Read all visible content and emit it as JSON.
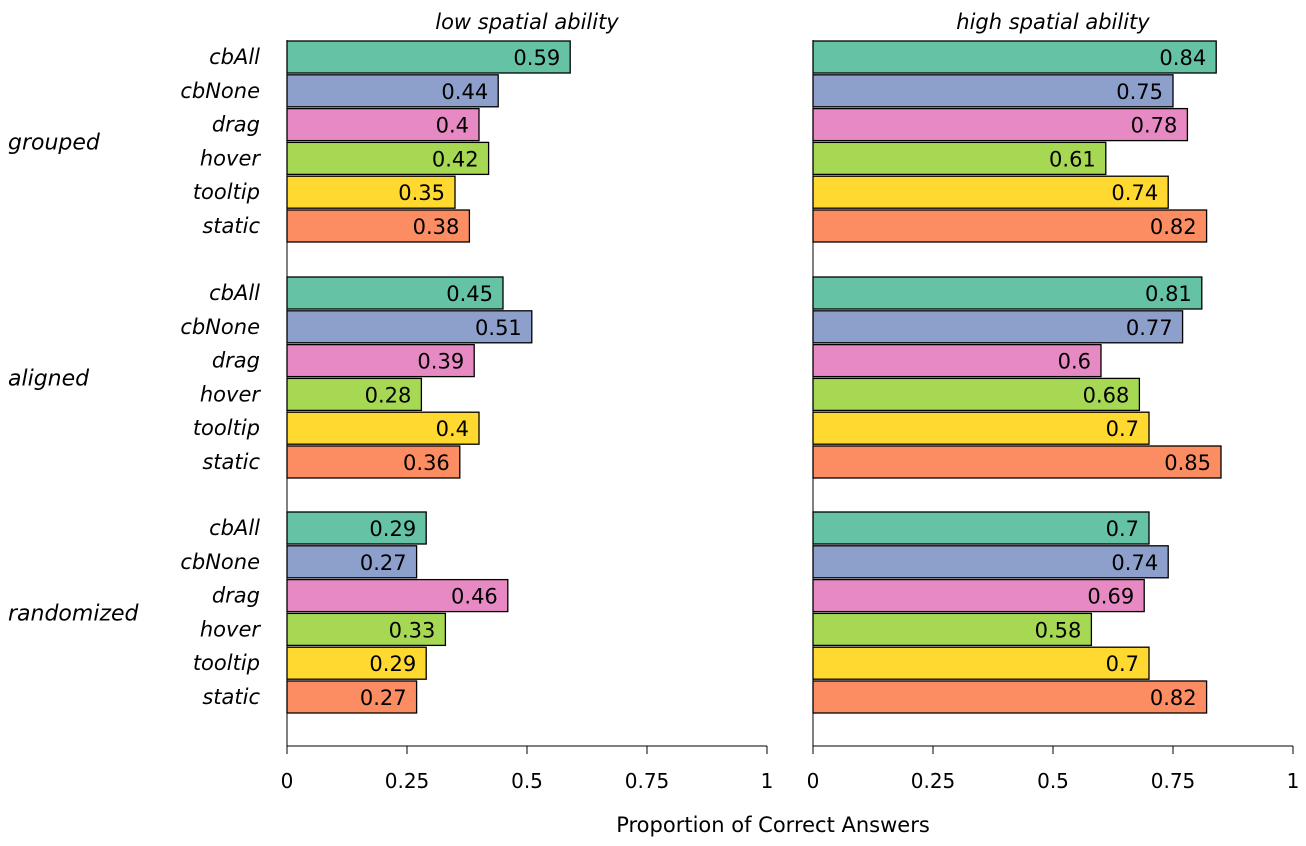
{
  "chart_data": {
    "type": "bar",
    "orientation": "horizontal",
    "xlabel": "Proportion of Correct Answers",
    "xlim": [
      0,
      1
    ],
    "xticks": [
      "0",
      "0.25",
      "0.5",
      "0.75",
      "1"
    ],
    "conditions": [
      "cbAll",
      "cbNone",
      "drag",
      "hover",
      "tooltip",
      "static"
    ],
    "colors": {
      "cbAll": "#66c2a5",
      "cbNone": "#8da0cb",
      "drag": "#e78ac3",
      "hover": "#a6d854",
      "tooltip": "#ffd92f",
      "static": "#fc8d62"
    },
    "groups": [
      "grouped",
      "aligned",
      "randomized"
    ],
    "panels": [
      {
        "title": "low spatial ability",
        "values": {
          "grouped": [
            0.59,
            0.44,
            0.4,
            0.42,
            0.35,
            0.38
          ],
          "aligned": [
            0.45,
            0.51,
            0.39,
            0.28,
            0.4,
            0.36
          ],
          "randomized": [
            0.29,
            0.27,
            0.46,
            0.33,
            0.29,
            0.27
          ]
        }
      },
      {
        "title": "high spatial ability",
        "values": {
          "grouped": [
            0.84,
            0.75,
            0.78,
            0.61,
            0.74,
            0.82
          ],
          "aligned": [
            0.81,
            0.77,
            0.6,
            0.68,
            0.7,
            0.85
          ],
          "randomized": [
            0.7,
            0.74,
            0.69,
            0.58,
            0.7,
            0.82
          ]
        }
      }
    ]
  }
}
